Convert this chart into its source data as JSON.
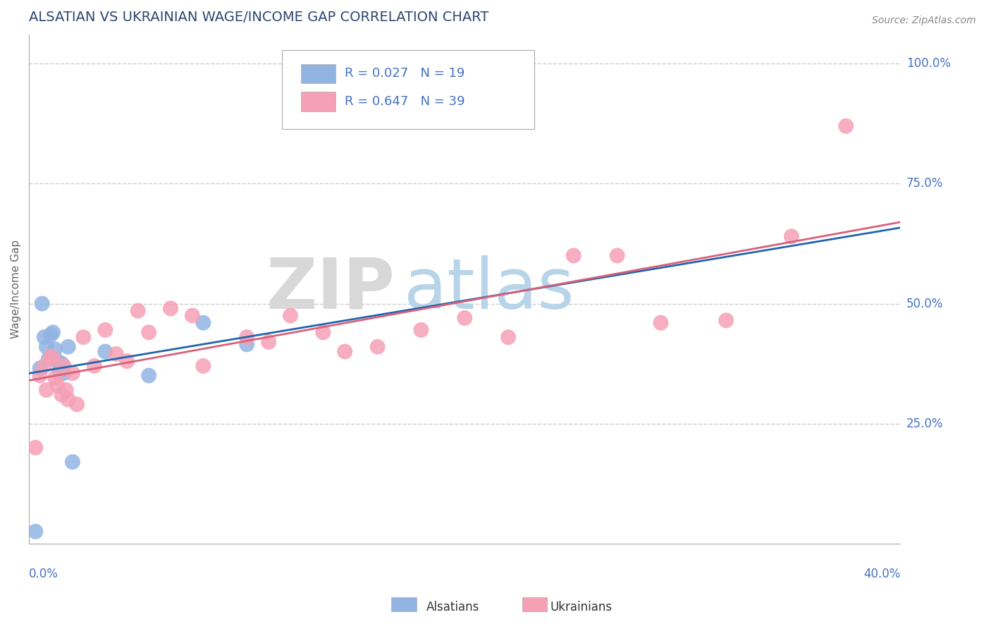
{
  "title": "ALSATIAN VS UKRAINIAN WAGE/INCOME GAP CORRELATION CHART",
  "source": "Source: ZipAtlas.com",
  "ylabel": "Wage/Income Gap",
  "xlim": [
    0.0,
    40.0
  ],
  "ylim": [
    0.0,
    106.0
  ],
  "y_ticks": [
    25.0,
    50.0,
    75.0,
    100.0
  ],
  "y_tick_labels": [
    "25.0%",
    "50.0%",
    "75.0%",
    "100.0%"
  ],
  "legend1_label": "R = 0.027   N = 19",
  "legend2_label": "R = 0.647   N = 39",
  "alsatian_color": "#92b4e3",
  "ukrainian_color": "#f5a0b5",
  "alsatian_line_color": "#2166ac",
  "ukrainian_line_color": "#d9607a",
  "title_color": "#2c4770",
  "axis_label_color": "#4472c4",
  "watermark_zip": "ZIP",
  "watermark_atlas": "atlas",
  "alsatians_x": [
    0.3,
    0.5,
    0.7,
    0.8,
    0.9,
    1.0,
    1.1,
    1.2,
    1.3,
    1.5,
    1.6,
    1.8,
    2.0,
    3.5,
    5.5,
    8.0,
    10.0,
    1.4,
    0.6
  ],
  "alsatians_y": [
    2.5,
    36.5,
    43.0,
    41.0,
    38.5,
    43.5,
    44.0,
    40.5,
    38.0,
    37.5,
    35.5,
    41.0,
    17.0,
    40.0,
    35.0,
    46.0,
    41.5,
    36.0,
    50.0
  ],
  "ukrainians_x": [
    0.3,
    0.5,
    0.7,
    0.8,
    1.0,
    1.1,
    1.2,
    1.3,
    1.5,
    1.6,
    1.8,
    2.0,
    2.2,
    2.5,
    3.0,
    3.5,
    4.0,
    4.5,
    5.0,
    5.5,
    6.5,
    7.5,
    8.0,
    10.0,
    11.0,
    12.0,
    13.5,
    14.5,
    16.0,
    18.0,
    20.0,
    22.0,
    25.0,
    27.0,
    29.0,
    32.0,
    35.0,
    37.5,
    1.7
  ],
  "ukrainians_y": [
    20.0,
    35.0,
    37.0,
    32.0,
    39.0,
    38.5,
    34.5,
    33.0,
    31.0,
    37.0,
    30.0,
    35.5,
    29.0,
    43.0,
    37.0,
    44.5,
    39.5,
    38.0,
    48.5,
    44.0,
    49.0,
    47.5,
    37.0,
    43.0,
    42.0,
    47.5,
    44.0,
    40.0,
    41.0,
    44.5,
    47.0,
    43.0,
    60.0,
    60.0,
    46.0,
    46.5,
    64.0,
    87.0,
    32.0
  ]
}
